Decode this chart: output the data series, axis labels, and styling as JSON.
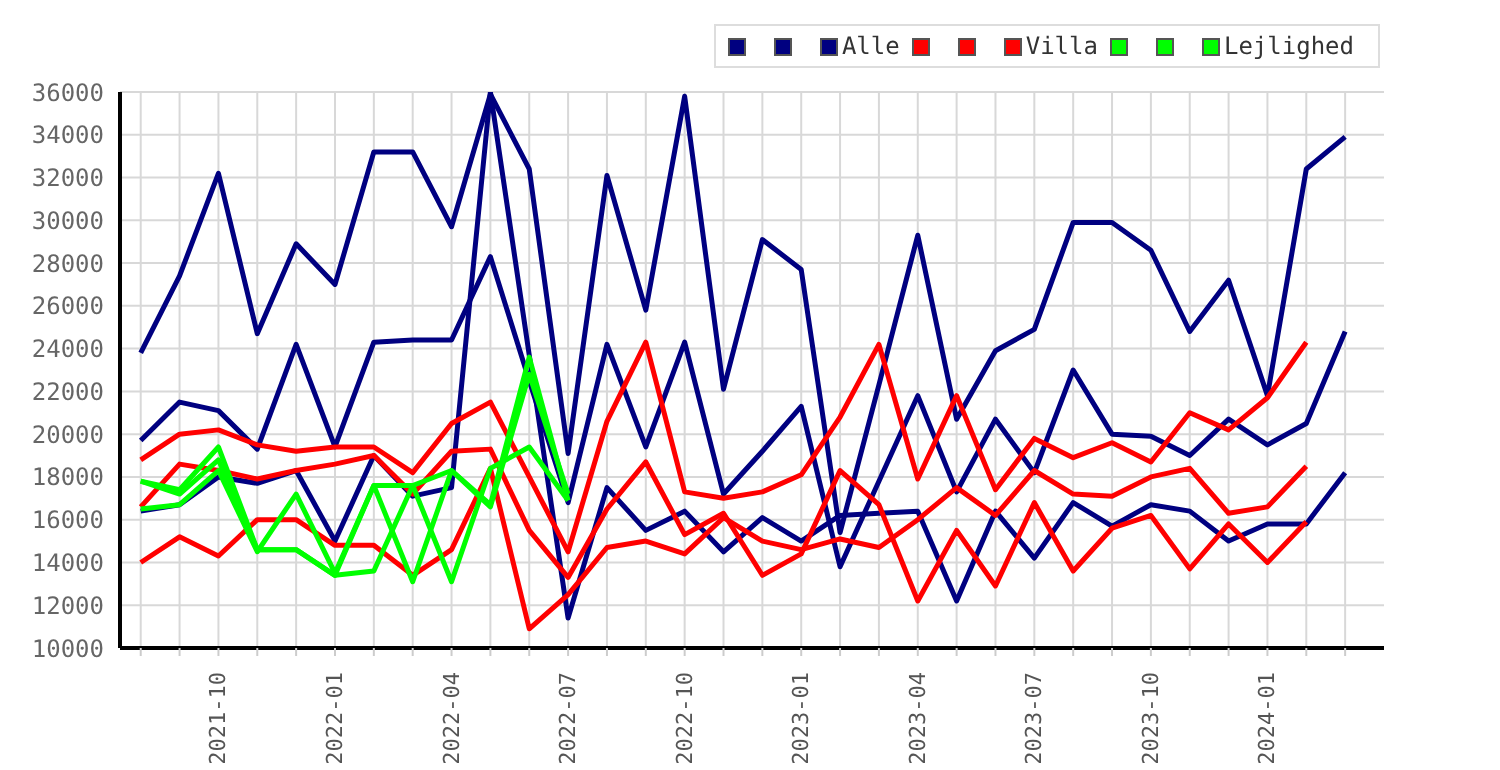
{
  "chart_data": {
    "type": "line",
    "x": [
      "2021-08",
      "2021-09",
      "2021-10",
      "2021-11",
      "2021-12",
      "2022-01",
      "2022-02",
      "2022-03",
      "2022-04",
      "2022-05",
      "2022-06",
      "2022-07",
      "2022-08",
      "2022-09",
      "2022-10",
      "2022-11",
      "2022-12",
      "2023-01",
      "2023-02",
      "2023-03",
      "2023-04",
      "2023-05",
      "2023-06",
      "2023-07",
      "2023-08",
      "2023-09",
      "2023-10",
      "2023-11",
      "2023-12",
      "2024-01",
      "2024-02",
      "2024-03"
    ],
    "series": [
      {
        "color": "#000080",
        "values": [
          23800,
          27400,
          32200,
          24700,
          28900,
          27000,
          33200,
          33200,
          29700,
          35900,
          32400,
          19100,
          32100,
          25800,
          35800,
          22100,
          29100,
          27700,
          15400,
          22300,
          29300,
          20700,
          23900,
          24900,
          29900,
          29900,
          28600,
          24800,
          27200,
          21800,
          32400,
          33900
        ]
      },
      {
        "color": "#000080",
        "values": [
          19700,
          21500,
          21100,
          19300,
          24200,
          19400,
          24300,
          24400,
          24400,
          28300,
          22500,
          16800,
          24200,
          19400,
          24300,
          17200,
          19200,
          21300,
          13800,
          17800,
          21800,
          17300,
          20700,
          18200,
          23000,
          20000,
          19900,
          19000,
          20700,
          19500,
          20500,
          24800
        ]
      },
      {
        "name": "Alle",
        "color": "#000080",
        "values": [
          16400,
          16700,
          18000,
          17700,
          18300,
          15000,
          19000,
          17100,
          17500,
          36000,
          23700,
          11400,
          17500,
          15500,
          16400,
          14500,
          16100,
          15000,
          16200,
          16300,
          16400,
          12200,
          16400,
          14200,
          16800,
          15700,
          16700,
          16400,
          15000,
          15800,
          15800,
          18200
        ]
      },
      {
        "color": "#ff0000",
        "values": [
          18800,
          20000,
          20200,
          19500,
          19200,
          19400,
          19400,
          18200,
          20500,
          21500,
          18000,
          14500,
          20600,
          24300,
          17300,
          17000,
          17300,
          18100,
          20800,
          24200,
          17900,
          21800,
          17400,
          19800,
          18900,
          19600,
          18700,
          21000,
          20200,
          21700,
          24300,
          null
        ]
      },
      {
        "color": "#ff0000",
        "values": [
          16600,
          18600,
          18300,
          17900,
          18300,
          18600,
          19000,
          17200,
          19200,
          19300,
          15500,
          13300,
          16500,
          18700,
          15300,
          16300,
          13400,
          14400,
          18300,
          16700,
          12200,
          15500,
          12900,
          16800,
          13600,
          15600,
          16200,
          13700,
          15800,
          14000,
          15900,
          null
        ]
      },
      {
        "name": "Villa",
        "color": "#ff0000",
        "values": [
          14000,
          15200,
          14300,
          16000,
          16000,
          14800,
          14800,
          13400,
          14600,
          18400,
          10900,
          12500,
          14700,
          15000,
          14400,
          16100,
          15000,
          14600,
          15100,
          14700,
          16000,
          17500,
          16200,
          18300,
          17200,
          17100,
          18000,
          18400,
          16300,
          16600,
          18500,
          null
        ]
      },
      {
        "color": "#00ff00",
        "values": [
          17800,
          17200,
          18800,
          14600,
          14600,
          13400,
          13600,
          17600,
          18300,
          16700,
          23600,
          16900,
          null,
          null,
          null,
          null,
          null,
          null,
          null,
          null,
          null,
          null,
          null,
          null,
          null,
          null,
          null,
          null,
          null,
          null,
          null,
          null
        ]
      },
      {
        "color": "#00ff00",
        "values": [
          17800,
          17400,
          19400,
          14600,
          14600,
          13400,
          17600,
          17600,
          13100,
          18400,
          19400,
          16900,
          null,
          null,
          null,
          null,
          null,
          null,
          null,
          null,
          null,
          null,
          null,
          null,
          null,
          null,
          null,
          null,
          null,
          null,
          null,
          null
        ]
      },
      {
        "name": "Lejlighed",
        "color": "#00ff00",
        "values": [
          16500,
          16700,
          18300,
          14500,
          17200,
          13500,
          17600,
          13100,
          18300,
          16600,
          22800,
          17200,
          null,
          null,
          null,
          null,
          null,
          null,
          null,
          null,
          null,
          null,
          null,
          null,
          null,
          null,
          null,
          null,
          null,
          null,
          null,
          null
        ]
      }
    ],
    "xlim": [
      "2021-07-15",
      "2024-04-01"
    ],
    "xticks": [
      {
        "value": "2021-08",
        "label": null
      },
      {
        "value": "2021-09",
        "label": null
      },
      {
        "value": "2021-10",
        "label": "2021-10"
      },
      {
        "value": "2021-11",
        "label": null
      },
      {
        "value": "2021-12",
        "label": null
      },
      {
        "value": "2022-01",
        "label": "2022-01"
      },
      {
        "value": "2022-02",
        "label": null
      },
      {
        "value": "2022-03",
        "label": null
      },
      {
        "value": "2022-04",
        "label": "2022-04"
      },
      {
        "value": "2022-05",
        "label": null
      },
      {
        "value": "2022-06",
        "label": null
      },
      {
        "value": "2022-07",
        "label": "2022-07"
      },
      {
        "value": "2022-08",
        "label": null
      },
      {
        "value": "2022-09",
        "label": null
      },
      {
        "value": "2022-10",
        "label": "2022-10"
      },
      {
        "value": "2022-11",
        "label": null
      },
      {
        "value": "2022-12",
        "label": null
      },
      {
        "value": "2023-01",
        "label": "2023-01"
      },
      {
        "value": "2023-02",
        "label": null
      },
      {
        "value": "2023-03",
        "label": null
      },
      {
        "value": "2023-04",
        "label": "2023-04"
      },
      {
        "value": "2023-05",
        "label": null
      },
      {
        "value": "2023-06",
        "label": null
      },
      {
        "value": "2023-07",
        "label": "2023-07"
      },
      {
        "value": "2023-08",
        "label": null
      },
      {
        "value": "2023-09",
        "label": null
      },
      {
        "value": "2023-10",
        "label": "2023-10"
      },
      {
        "value": "2023-11",
        "label": null
      },
      {
        "value": "2023-12",
        "label": null
      },
      {
        "value": "2024-01",
        "label": "2024-01"
      },
      {
        "value": "2024-02",
        "label": null
      },
      {
        "value": "2024-03",
        "label": null
      }
    ],
    "ylim": [
      10000,
      36000
    ],
    "yticks": [
      10000,
      12000,
      14000,
      16000,
      18000,
      20000,
      22000,
      24000,
      26000,
      28000,
      30000,
      32000,
      34000,
      36000
    ],
    "grid": true,
    "legend": "top right",
    "marker": "none",
    "line_style": "solid"
  }
}
